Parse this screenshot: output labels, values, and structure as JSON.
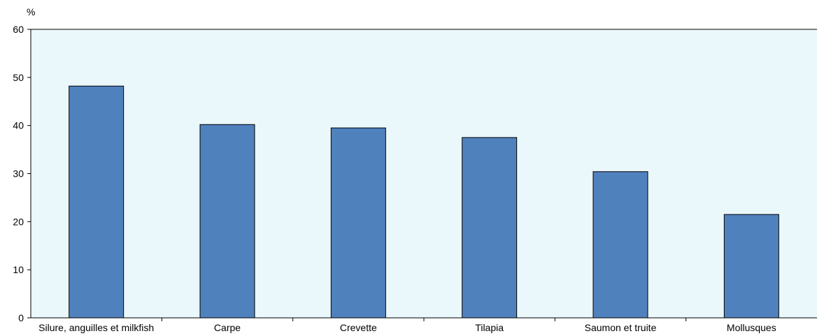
{
  "chart_data": {
    "type": "bar",
    "title": "",
    "xlabel": "",
    "ylabel": "%",
    "categories": [
      "Silure, anguilles et milkfish",
      "Carpe",
      "Crevette",
      "Tilapia",
      "Saumon et truite",
      "Mollusques"
    ],
    "values": [
      48.2,
      40.2,
      39.5,
      37.5,
      30.4,
      21.5
    ],
    "ylim": [
      0,
      60
    ],
    "yticks": [
      "0",
      "10",
      "20",
      "30",
      "40",
      "50",
      "60"
    ],
    "grid": false,
    "legend": "none",
    "colors": {
      "bar": "#4f81bd",
      "bar_stroke": "#000000",
      "plot_background": "#eaf7fb",
      "axis": "#000000"
    }
  }
}
